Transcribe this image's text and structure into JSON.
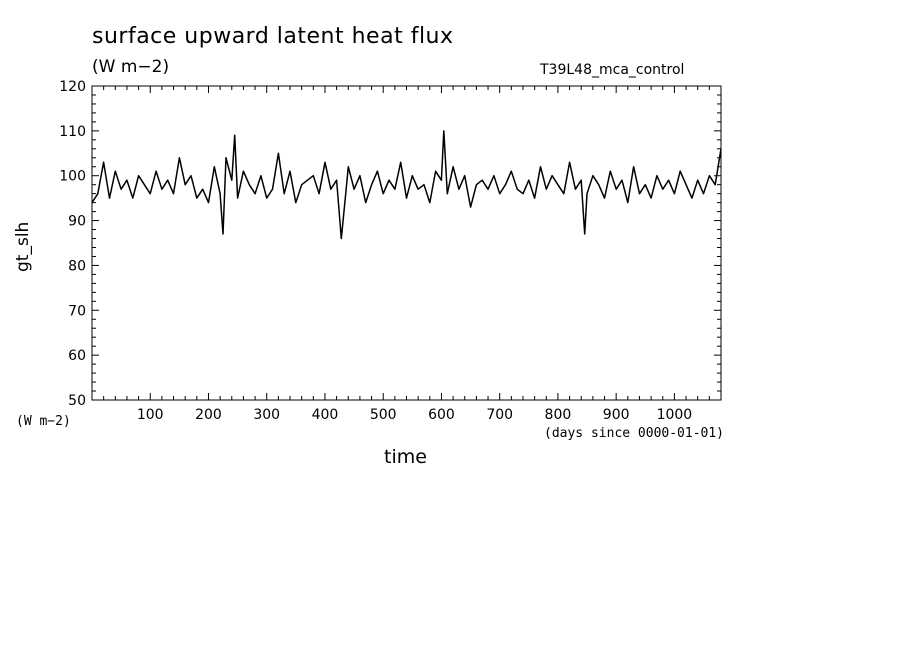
{
  "chart_data": {
    "type": "line",
    "title": "surface upward latent heat flux",
    "subtitle": "(W m−2)",
    "run_label": "T39L48_mca_control",
    "ylabel": "gt_slh",
    "yunit": "(W m−2)",
    "xlabel": "time",
    "xunit": "(days since 0000-01-01)",
    "xlim": [
      0,
      1080
    ],
    "ylim": [
      50,
      120
    ],
    "xticks": [
      100,
      200,
      300,
      400,
      500,
      600,
      700,
      800,
      900,
      1000
    ],
    "yticks": [
      50,
      60,
      70,
      80,
      90,
      100,
      110,
      120
    ],
    "grid": false,
    "line_color": "#000000",
    "series": [
      {
        "x": [
          0,
          10,
          20,
          30,
          40,
          50,
          60,
          70,
          80,
          90,
          100,
          110,
          120,
          130,
          140,
          150,
          160,
          170,
          180,
          190,
          200,
          210,
          220,
          225,
          230,
          240,
          245,
          250,
          260,
          270,
          280,
          290,
          300,
          310,
          320,
          330,
          340,
          350,
          360,
          370,
          380,
          390,
          400,
          410,
          420,
          428,
          435,
          440,
          450,
          460,
          470,
          480,
          490,
          500,
          510,
          520,
          530,
          540,
          550,
          560,
          570,
          580,
          590,
          600,
          604,
          610,
          620,
          630,
          640,
          650,
          660,
          670,
          680,
          690,
          700,
          710,
          720,
          730,
          740,
          750,
          760,
          770,
          780,
          790,
          800,
          810,
          820,
          830,
          840,
          846,
          850,
          860,
          870,
          880,
          890,
          900,
          910,
          920,
          930,
          940,
          950,
          960,
          970,
          980,
          990,
          1000,
          1010,
          1020,
          1030,
          1040,
          1050,
          1060,
          1070,
          1080
        ],
        "y": [
          94,
          96,
          103,
          95,
          101,
          97,
          99,
          95,
          100,
          98,
          96,
          101,
          97,
          99,
          96,
          104,
          98,
          100,
          95,
          97,
          94,
          102,
          96,
          87,
          104,
          99,
          109,
          95,
          101,
          98,
          96,
          100,
          95,
          97,
          105,
          96,
          101,
          94,
          98,
          99,
          100,
          96,
          103,
          97,
          99,
          86,
          95,
          102,
          97,
          100,
          94,
          98,
          101,
          96,
          99,
          97,
          103,
          95,
          100,
          97,
          98,
          94,
          101,
          99,
          110,
          96,
          102,
          97,
          100,
          93,
          98,
          99,
          97,
          100,
          96,
          98,
          101,
          97,
          96,
          99,
          95,
          102,
          97,
          100,
          98,
          96,
          103,
          97,
          99,
          87,
          96,
          100,
          98,
          95,
          101,
          97,
          99,
          94,
          102,
          96,
          98,
          95,
          100,
          97,
          99,
          96,
          101,
          98,
          95,
          99,
          96,
          100,
          98,
          106
        ]
      }
    ]
  }
}
